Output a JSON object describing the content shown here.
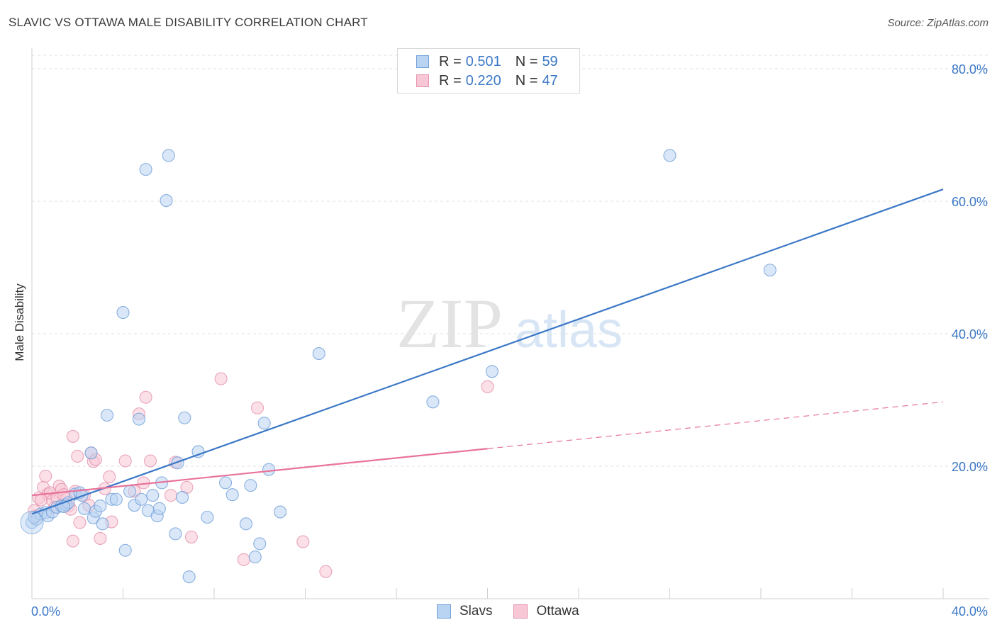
{
  "title": "SLAVIC VS OTTAWA MALE DISABILITY CORRELATION CHART",
  "source": "Source: ZipAtlas.com",
  "watermark": {
    "part1": "ZIP",
    "part2": "atlas"
  },
  "legend": {
    "rows": [
      {
        "r_label": "R =",
        "r_value": "0.501",
        "n_label": "N =",
        "n_value": "59",
        "color": "#b9d3f2",
        "border": "#6f9fd8"
      },
      {
        "r_label": "R =",
        "r_value": "0.220",
        "n_label": "N =",
        "n_value": "47",
        "color": "#f7c7d6",
        "border": "#e591ad"
      }
    ],
    "bottom": [
      {
        "label": "Slavs"
      },
      {
        "label": "Ottawa"
      }
    ]
  },
  "chart_data": {
    "type": "scatter",
    "title": "SLAVIC VS OTTAWA MALE DISABILITY CORRELATION CHART",
    "xlabel": "",
    "ylabel": "Male Disability",
    "xlim": [
      0,
      40
    ],
    "ylim": [
      0,
      80
    ],
    "x_tick_labels": [
      "0.0%",
      "40.0%"
    ],
    "y_tick_labels": [
      "20.0%",
      "40.0%",
      "60.0%",
      "80.0%"
    ],
    "y_ticks": [
      20,
      40,
      60,
      80
    ],
    "colors": {
      "slavs": "#3b78c6",
      "ottawa": "#e8739b",
      "slavs_fill": "#b9d3f2",
      "ottawa_fill": "#f7c7d6",
      "label": "#3b78c6"
    },
    "series": [
      {
        "name": "Slavs",
        "R": 0.501,
        "N": 59,
        "trend": {
          "x": [
            0,
            40
          ],
          "y": [
            12.8,
            61.8
          ],
          "dashed_from": null
        },
        "points": [
          [
            0.0,
            11.5
          ],
          [
            0.2,
            12.0
          ],
          [
            0.4,
            12.8
          ],
          [
            0.6,
            13.0
          ],
          [
            0.7,
            12.5
          ],
          [
            0.9,
            13.1
          ],
          [
            1.1,
            13.8
          ],
          [
            1.3,
            14.0
          ],
          [
            1.5,
            14.2
          ],
          [
            1.6,
            14.5
          ],
          [
            1.9,
            15.8
          ],
          [
            2.1,
            16.0
          ],
          [
            2.3,
            13.6
          ],
          [
            2.6,
            22.0
          ],
          [
            2.7,
            12.2
          ],
          [
            2.8,
            13.2
          ],
          [
            3.0,
            14.0
          ],
          [
            3.1,
            11.3
          ],
          [
            3.3,
            27.7
          ],
          [
            3.5,
            15.0
          ],
          [
            3.7,
            15.0
          ],
          [
            4.0,
            43.2
          ],
          [
            4.1,
            7.3
          ],
          [
            4.3,
            16.2
          ],
          [
            4.5,
            14.1
          ],
          [
            4.7,
            27.1
          ],
          [
            4.8,
            15.0
          ],
          [
            5.0,
            64.8
          ],
          [
            5.1,
            13.3
          ],
          [
            5.3,
            15.6
          ],
          [
            5.5,
            12.5
          ],
          [
            5.6,
            13.6
          ],
          [
            5.7,
            17.5
          ],
          [
            5.9,
            60.1
          ],
          [
            6.0,
            66.9
          ],
          [
            6.3,
            9.8
          ],
          [
            6.4,
            20.5
          ],
          [
            6.6,
            15.3
          ],
          [
            6.7,
            27.3
          ],
          [
            6.9,
            3.3
          ],
          [
            7.3,
            22.2
          ],
          [
            7.7,
            12.3
          ],
          [
            8.5,
            17.5
          ],
          [
            8.8,
            15.7
          ],
          [
            9.4,
            11.3
          ],
          [
            9.6,
            17.1
          ],
          [
            9.8,
            6.3
          ],
          [
            10.0,
            8.3
          ],
          [
            10.2,
            26.5
          ],
          [
            10.4,
            19.5
          ],
          [
            10.9,
            13.1
          ],
          [
            12.6,
            37.0
          ],
          [
            17.6,
            29.7
          ],
          [
            20.2,
            34.3
          ],
          [
            28.0,
            66.9
          ],
          [
            32.4,
            49.6
          ],
          [
            0.1,
            12.3
          ],
          [
            1.4,
            13.9
          ],
          [
            2.2,
            15.6
          ]
        ]
      },
      {
        "name": "Ottawa",
        "R": 0.22,
        "N": 47,
        "trend": {
          "x": [
            0,
            40
          ],
          "y": [
            15.6,
            29.7
          ],
          "dashed_from": 20.0
        },
        "points": [
          [
            0.1,
            13.3
          ],
          [
            0.2,
            12.5
          ],
          [
            0.3,
            15.2
          ],
          [
            0.5,
            16.8
          ],
          [
            0.6,
            18.5
          ],
          [
            0.7,
            15.8
          ],
          [
            0.8,
            16.0
          ],
          [
            0.9,
            14.8
          ],
          [
            1.0,
            13.8
          ],
          [
            1.1,
            15.2
          ],
          [
            1.2,
            17.0
          ],
          [
            1.3,
            16.5
          ],
          [
            1.5,
            15.1
          ],
          [
            1.6,
            14.0
          ],
          [
            1.7,
            13.5
          ],
          [
            1.8,
            24.5
          ],
          [
            1.8,
            8.7
          ],
          [
            1.9,
            16.2
          ],
          [
            2.0,
            21.5
          ],
          [
            2.1,
            11.5
          ],
          [
            2.3,
            15.6
          ],
          [
            2.5,
            14.1
          ],
          [
            2.6,
            22.0
          ],
          [
            2.7,
            20.7
          ],
          [
            2.8,
            21.0
          ],
          [
            3.0,
            9.1
          ],
          [
            3.2,
            16.6
          ],
          [
            3.4,
            18.4
          ],
          [
            3.5,
            11.6
          ],
          [
            4.1,
            20.8
          ],
          [
            4.5,
            16.2
          ],
          [
            4.7,
            27.9
          ],
          [
            4.9,
            17.5
          ],
          [
            5.0,
            30.4
          ],
          [
            5.2,
            20.8
          ],
          [
            6.1,
            15.6
          ],
          [
            6.3,
            20.6
          ],
          [
            6.8,
            16.8
          ],
          [
            7.0,
            9.3
          ],
          [
            8.3,
            33.2
          ],
          [
            9.3,
            5.9
          ],
          [
            9.9,
            28.8
          ],
          [
            11.9,
            8.6
          ],
          [
            12.9,
            4.1
          ],
          [
            20.0,
            32.0
          ],
          [
            0.4,
            14.9
          ],
          [
            1.4,
            15.7
          ]
        ]
      }
    ]
  }
}
